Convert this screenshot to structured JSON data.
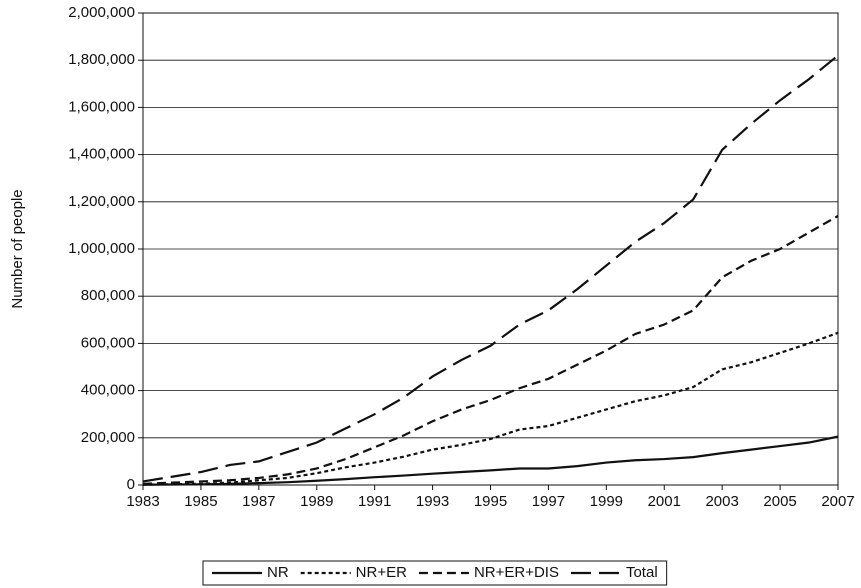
{
  "chart_data": {
    "type": "line",
    "y_label": "Number of people",
    "x": [
      1983,
      1984,
      1985,
      1986,
      1987,
      1988,
      1989,
      1990,
      1991,
      1992,
      1993,
      1994,
      1995,
      1996,
      1997,
      1998,
      1999,
      2000,
      2001,
      2002,
      2003,
      2004,
      2005,
      2006,
      2007
    ],
    "xlim": [
      1983,
      2007
    ],
    "xticks": [
      1983,
      1985,
      1987,
      1989,
      1991,
      1993,
      1995,
      1997,
      1999,
      2001,
      2003,
      2005,
      2007
    ],
    "ylim": [
      0,
      2000000
    ],
    "yticks": [
      0,
      {
        "value": 200000,
        "label": "200,000"
      },
      {
        "value": 400000,
        "label": "400,000"
      },
      {
        "value": 600000,
        "label": "600,000"
      },
      {
        "value": 800000,
        "label": "800,000"
      },
      {
        "value": 1000000,
        "label": "1,000,000"
      },
      {
        "value": 1200000,
        "label": "1,200,000"
      },
      {
        "value": 1400000,
        "label": "1,400,000"
      },
      {
        "value": 1600000,
        "label": "1,600,000"
      },
      {
        "value": 1800000,
        "label": "1,800,000"
      },
      {
        "value": 2000000,
        "label": "2,000,000"
      }
    ],
    "grid": true,
    "legend": "bottom",
    "series": [
      {
        "name": "NR",
        "color": "#111111",
        "dash": "solid",
        "values": [
          1000,
          2000,
          3000,
          5000,
          8000,
          12000,
          18000,
          25000,
          33000,
          40000,
          48000,
          55000,
          62000,
          70000,
          70000,
          80000,
          95000,
          105000,
          110000,
          118000,
          135000,
          150000,
          165000,
          180000,
          205000
        ]
      },
      {
        "name": "NR+ER",
        "color": "#111111",
        "dash": "dotted",
        "values": [
          2000,
          3000,
          5000,
          10000,
          20000,
          30000,
          50000,
          75000,
          95000,
          120000,
          150000,
          170000,
          195000,
          235000,
          250000,
          285000,
          320000,
          355000,
          380000,
          415000,
          490000,
          520000,
          560000,
          600000,
          645000
        ]
      },
      {
        "name": "NR+ER+DIS",
        "color": "#111111",
        "dash": "dashed",
        "values": [
          5000,
          10000,
          15000,
          20000,
          30000,
          45000,
          70000,
          110000,
          160000,
          210000,
          270000,
          320000,
          360000,
          410000,
          450000,
          510000,
          570000,
          640000,
          680000,
          740000,
          880000,
          950000,
          1000000,
          1070000,
          1140000
        ]
      },
      {
        "name": "Total",
        "color": "#111111",
        "dash": "longdash",
        "values": [
          15000,
          35000,
          55000,
          85000,
          100000,
          140000,
          180000,
          240000,
          300000,
          370000,
          460000,
          530000,
          590000,
          680000,
          740000,
          830000,
          930000,
          1030000,
          1110000,
          1210000,
          1420000,
          1530000,
          1630000,
          1720000,
          1820000
        ]
      }
    ]
  }
}
